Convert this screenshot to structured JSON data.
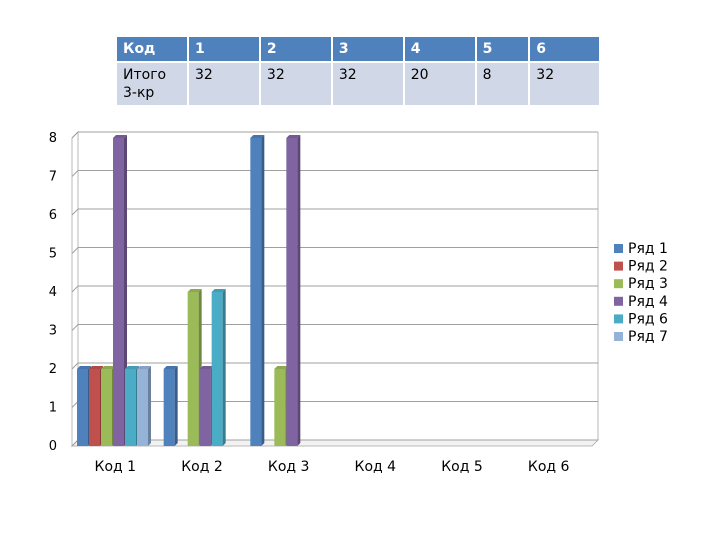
{
  "table": {
    "header": [
      "Код",
      "1",
      "2",
      "3",
      "4",
      "5",
      "6"
    ],
    "row": [
      "Итого 3-кр",
      "32",
      "32",
      "32",
      "20",
      "8",
      "32"
    ]
  },
  "chart_data": {
    "type": "bar",
    "title": "",
    "xlabel": "",
    "ylabel": "",
    "ylim": [
      0,
      8
    ],
    "yticks": [
      0,
      1,
      2,
      3,
      4,
      5,
      6,
      7,
      8
    ],
    "grid": true,
    "legend": "right",
    "categories": [
      "Код 1",
      "Код 2",
      "Код 3",
      "Код 4",
      "Код 5",
      "Код 6"
    ],
    "series": [
      {
        "name": "Ряд 1",
        "color": "#4f81bd",
        "values": [
          2,
          2,
          8,
          0,
          0,
          0
        ]
      },
      {
        "name": "Ряд 2",
        "color": "#c0504d",
        "values": [
          2,
          0,
          0,
          0,
          0,
          0
        ]
      },
      {
        "name": "Ряд 3",
        "color": "#9bbb59",
        "values": [
          2,
          4,
          2,
          0,
          0,
          0
        ]
      },
      {
        "name": "Ряд 4",
        "color": "#8064a2",
        "values": [
          8,
          2,
          8,
          0,
          0,
          0
        ]
      },
      {
        "name": "Ряд 6",
        "color": "#4bacc6",
        "values": [
          2,
          4,
          0,
          0,
          0,
          0
        ]
      },
      {
        "name": "Ряд 7",
        "color": "#95b3d7",
        "values": [
          2,
          0,
          0,
          0,
          0,
          0
        ]
      }
    ]
  }
}
